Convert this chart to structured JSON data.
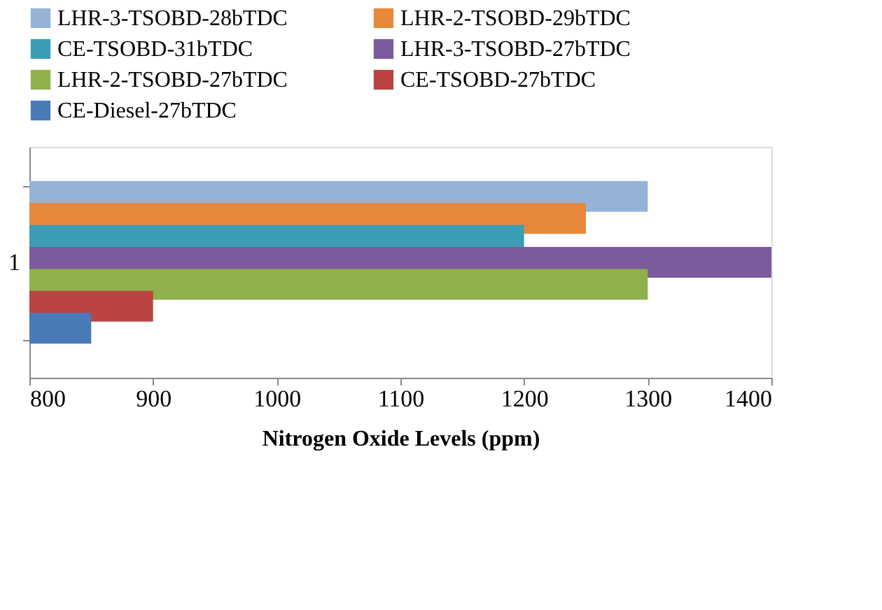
{
  "chart_data": {
    "type": "bar",
    "orientation": "horizontal",
    "categories": [
      "1"
    ],
    "xlabel": "Nitrogen Oxide Levels (ppm)",
    "xlim": [
      800,
      1400
    ],
    "xticks": [
      800,
      900,
      1000,
      1100,
      1200,
      1300,
      1400
    ],
    "grid": false,
    "legend": "top",
    "series": [
      {
        "name": "LHR-3-TSOBD-28bTDC",
        "color": "#95b3d7",
        "values": [
          1300
        ]
      },
      {
        "name": "LHR-2-TSOBD-29bTDC",
        "color": "#e8883a",
        "values": [
          1250
        ]
      },
      {
        "name": "CE-TSOBD-31bTDC",
        "color": "#3b9db3",
        "values": [
          1200
        ]
      },
      {
        "name": "LHR-3-TSOBD-27bTDC",
        "color": "#7b5b9b",
        "values": [
          1400
        ]
      },
      {
        "name": "LHR-2-TSOBD-27bTDC",
        "color": "#8fb04a",
        "values": [
          1300
        ]
      },
      {
        "name": "CE-TSOBD-27bTDC",
        "color": "#b94442",
        "values": [
          900
        ]
      },
      {
        "name": "CE-Diesel-27bTDC",
        "color": "#4a7ab8",
        "values": [
          850
        ]
      }
    ]
  }
}
